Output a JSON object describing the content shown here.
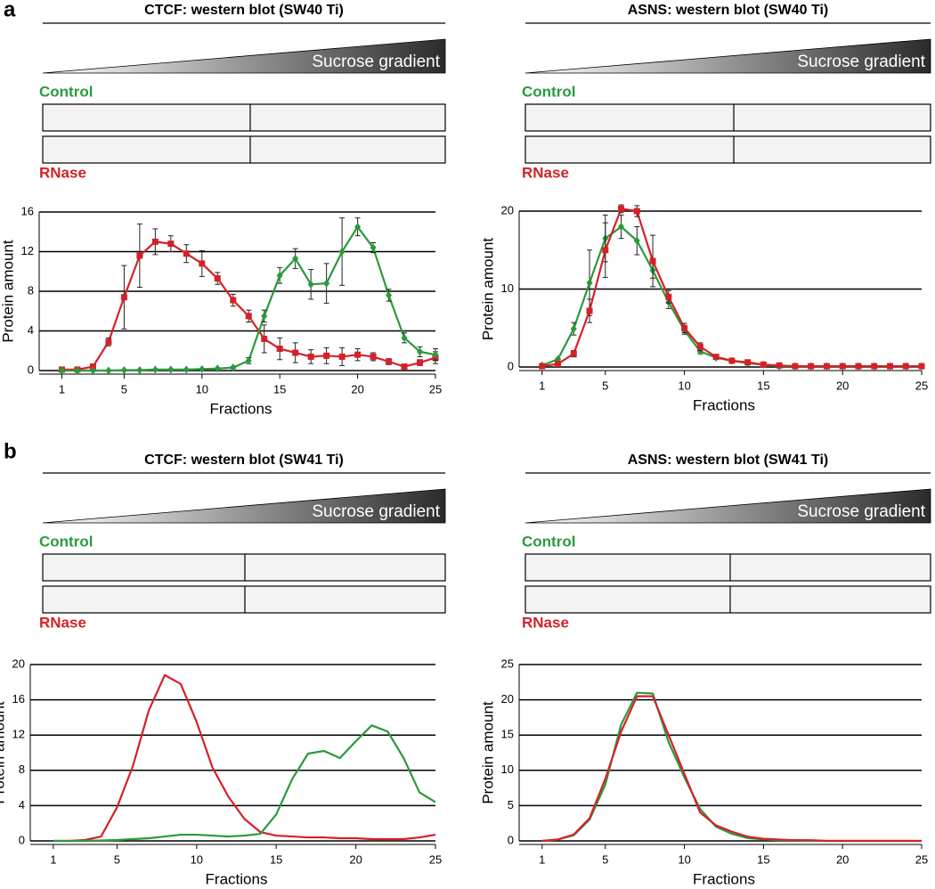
{
  "panel_labels": [
    "a",
    "b"
  ],
  "chart_data": [
    {
      "type": "line",
      "title": "CTCF: western blot (SW40 Ti)",
      "gradient_label": "Sucrose gradient",
      "blot_labels": [
        "Control",
        "RNase"
      ],
      "xlabel": "Fractions",
      "ylabel": "Protein amount",
      "grid": true,
      "x": [
        1,
        2,
        3,
        4,
        5,
        6,
        7,
        8,
        9,
        10,
        11,
        12,
        13,
        14,
        15,
        16,
        17,
        18,
        19,
        20,
        21,
        22,
        23,
        24,
        25
      ],
      "xlim": [
        0,
        25
      ],
      "xticks": [
        1,
        5,
        10,
        15,
        20,
        25
      ],
      "ylim": [
        0,
        16
      ],
      "yticks": [
        0,
        4,
        8,
        12,
        16
      ],
      "series": [
        {
          "name": "RNase",
          "color": "#d42128",
          "marker": "square",
          "values": [
            0.1,
            0.1,
            0.4,
            2.9,
            7.4,
            11.6,
            13.0,
            12.8,
            11.8,
            10.8,
            9.3,
            7.1,
            5.5,
            3.2,
            2.2,
            1.8,
            1.4,
            1.5,
            1.4,
            1.6,
            1.4,
            0.9,
            0.4,
            0.8,
            1.3
          ],
          "errors": [
            0.05,
            0.05,
            0.2,
            0.4,
            3.2,
            3.2,
            1.3,
            0.8,
            0.9,
            1.3,
            0.6,
            0.6,
            0.6,
            1.4,
            1.1,
            1.0,
            0.7,
            0.8,
            0.9,
            0.6,
            0.4,
            0.3,
            0.2,
            0.3,
            0.6
          ]
        },
        {
          "name": "Control",
          "color": "#2a9a3c",
          "marker": "diamond",
          "values": [
            0,
            0,
            0,
            0,
            0.05,
            0.05,
            0.1,
            0.1,
            0.1,
            0.15,
            0.2,
            0.3,
            1.0,
            5.5,
            9.6,
            11.3,
            8.7,
            8.8,
            12.0,
            14.5,
            12.4,
            7.6,
            3.3,
            1.9,
            1.6
          ],
          "errors": [
            0,
            0,
            0,
            0,
            0,
            0,
            0,
            0,
            0,
            0.05,
            0.05,
            0.1,
            0.3,
            0.6,
            0.8,
            1.0,
            1.5,
            2.0,
            3.4,
            0.9,
            0.5,
            0.6,
            0.5,
            0.5,
            0.6
          ]
        }
      ]
    },
    {
      "type": "line",
      "title": "ASNS: western blot (SW40 Ti)",
      "gradient_label": "Sucrose gradient",
      "blot_labels": [
        "Control",
        "RNase"
      ],
      "xlabel": "Fractions",
      "ylabel": "Protein amount",
      "grid": true,
      "x": [
        1,
        2,
        3,
        4,
        5,
        6,
        7,
        8,
        9,
        10,
        11,
        12,
        13,
        14,
        15,
        16,
        17,
        18,
        19,
        20,
        21,
        22,
        23,
        24,
        25
      ],
      "xlim": [
        0,
        25
      ],
      "xticks": [
        1,
        5,
        10,
        15,
        20,
        25
      ],
      "ylim": [
        0,
        20
      ],
      "yticks": [
        0,
        10,
        20
      ],
      "series": [
        {
          "name": "Control",
          "color": "#2a9a3c",
          "marker": "diamond",
          "values": [
            0.2,
            1.0,
            4.9,
            10.8,
            16.5,
            18.0,
            16.2,
            12.4,
            8.3,
            4.7,
            2.0,
            1.2,
            0.8,
            0.5,
            0.3,
            0.1,
            0.1,
            0.1,
            0.1,
            0.1,
            0.1,
            0.1,
            0.1,
            0.1,
            0.1
          ],
          "errors": [
            0.05,
            0.1,
            0.8,
            4.2,
            3.0,
            1.5,
            1.8,
            1.0,
            0.8,
            0.5,
            0.3,
            0.2,
            0.1,
            0.1,
            0.05,
            0.05,
            0,
            0,
            0,
            0,
            0,
            0,
            0,
            0,
            0
          ]
        },
        {
          "name": "RNase",
          "color": "#d42128",
          "marker": "square",
          "values": [
            0.1,
            0.4,
            1.7,
            7.2,
            15.0,
            20.3,
            20.0,
            13.6,
            9.0,
            5.0,
            2.6,
            1.3,
            0.8,
            0.6,
            0.3,
            0.2,
            0.1,
            0.1,
            0.1,
            0.1,
            0.1,
            0.1,
            0.1,
            0.1,
            0.1
          ],
          "errors": [
            0.05,
            0.1,
            0.4,
            1.5,
            3.5,
            0.5,
            0.7,
            3.3,
            0.8,
            0.6,
            0.5,
            0.3,
            0.2,
            0.1,
            0.1,
            0.05,
            0,
            0,
            0,
            0,
            0,
            0,
            0,
            0,
            0
          ]
        }
      ]
    },
    {
      "type": "line",
      "title": "CTCF: western blot (SW41 Ti)",
      "gradient_label": "Sucrose gradient",
      "blot_labels": [
        "Control",
        "RNase"
      ],
      "xlabel": "Fractions",
      "ylabel": "Protein amount",
      "grid": true,
      "x": [
        1,
        2,
        3,
        4,
        5,
        6,
        7,
        8,
        9,
        10,
        11,
        12,
        13,
        14,
        15,
        16,
        17,
        18,
        19,
        20,
        21,
        22,
        23,
        24,
        25
      ],
      "xlim": [
        0,
        25
      ],
      "xticks": [
        1,
        5,
        10,
        15,
        20,
        25
      ],
      "ylim": [
        0,
        20
      ],
      "yticks": [
        0,
        4,
        8,
        12,
        16,
        20
      ],
      "series": [
        {
          "name": "RNase",
          "color": "#d42128",
          "values": [
            0,
            0,
            0.1,
            0.5,
            3.8,
            8.5,
            14.8,
            18.8,
            17.8,
            13.5,
            8.3,
            5.0,
            2.5,
            1.0,
            0.6,
            0.5,
            0.4,
            0.4,
            0.3,
            0.3,
            0.2,
            0.2,
            0.2,
            0.4,
            0.7
          ]
        },
        {
          "name": "Control",
          "color": "#2a9a3c",
          "values": [
            0,
            0,
            0,
            0.05,
            0.1,
            0.2,
            0.3,
            0.5,
            0.7,
            0.7,
            0.6,
            0.5,
            0.6,
            0.8,
            3.0,
            7.0,
            9.9,
            10.2,
            9.4,
            11.3,
            13.1,
            12.4,
            9.4,
            5.5,
            4.4
          ]
        }
      ]
    },
    {
      "type": "line",
      "title": "ASNS: western blot (SW41 Ti)",
      "gradient_label": "Sucrose gradient",
      "blot_labels": [
        "Control",
        "RNase"
      ],
      "xlabel": "Fractions",
      "ylabel": "Protein amount",
      "grid": true,
      "x": [
        1,
        2,
        3,
        4,
        5,
        6,
        7,
        8,
        9,
        10,
        11,
        12,
        13,
        14,
        15,
        16,
        17,
        18,
        19,
        20,
        21,
        22,
        23,
        24,
        25
      ],
      "xlim": [
        0,
        25
      ],
      "xticks": [
        1,
        5,
        10,
        15,
        20,
        25
      ],
      "ylim": [
        0,
        25
      ],
      "yticks": [
        0,
        5,
        10,
        15,
        20,
        25
      ],
      "series": [
        {
          "name": "Control",
          "color": "#2a9a3c",
          "values": [
            0,
            0.2,
            0.8,
            3.0,
            8.0,
            16.5,
            21.0,
            20.9,
            14.0,
            9.0,
            4.5,
            2.0,
            1.0,
            0.4,
            0.2,
            0.1,
            0.1,
            0.05,
            0,
            0,
            0,
            0,
            0,
            0,
            0
          ]
        },
        {
          "name": "RNase",
          "color": "#d42128",
          "values": [
            0,
            0.2,
            0.9,
            3.2,
            8.8,
            15.5,
            20.5,
            20.5,
            15.0,
            9.5,
            4.0,
            2.2,
            1.3,
            0.6,
            0.3,
            0.2,
            0.1,
            0.1,
            0,
            0,
            0,
            0,
            0,
            0,
            0
          ]
        }
      ]
    }
  ]
}
